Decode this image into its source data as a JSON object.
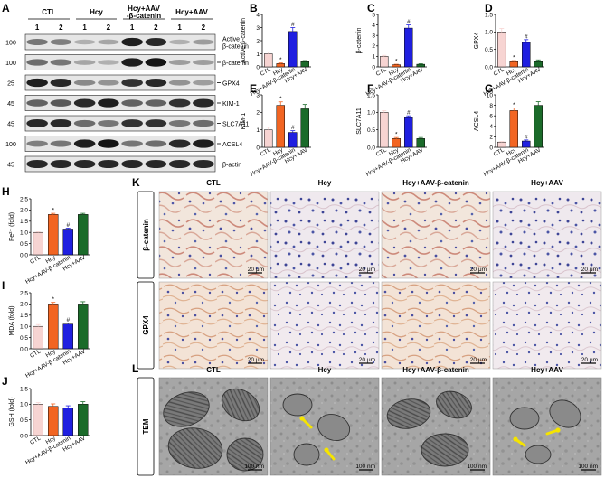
{
  "panel_letters": {
    "A": "A",
    "B": "B",
    "C": "C",
    "D": "D",
    "E": "E",
    "F": "F",
    "G": "G",
    "H": "H",
    "I": "I",
    "J": "J",
    "K": "K",
    "L": "L"
  },
  "colors": {
    "ctl": "#f7d4d2",
    "hcy": "#f26522",
    "hcy_aav_bcat": "#1f1fe0",
    "hcy_aav": "#1b6b2a",
    "ihc_bg": "#efe3d8",
    "tem_bg": "#9a9a9a",
    "arrow": "#f5e400"
  },
  "western": {
    "groups": [
      "CTL",
      "Hcy",
      "Hcy+AAV\n-β-catenin",
      "Hcy+AAV"
    ],
    "group_lines": [
      [
        "CTL"
      ],
      [
        "Hcy"
      ],
      [
        "Hcy+AAV",
        "-β-catenin"
      ],
      [
        "Hcy+AAV"
      ]
    ],
    "lanes": [
      "1",
      "2",
      "1",
      "2",
      "1",
      "2",
      "1",
      "2"
    ],
    "rows": [
      {
        "mw": "100",
        "label": [
          "Active",
          "β-catenin"
        ]
      },
      {
        "mw": "100",
        "label": [
          "β-catenin"
        ]
      },
      {
        "mw": "25",
        "label": [
          "GPX4"
        ]
      },
      {
        "mw": "45",
        "label": [
          "KIM-1"
        ]
      },
      {
        "mw": "45",
        "label": [
          "SLC7A11"
        ]
      },
      {
        "mw": "100",
        "label": [
          "ACSL4"
        ]
      },
      {
        "mw": "45",
        "label": [
          "β-actin"
        ]
      }
    ]
  },
  "categories": [
    "CTL",
    "Hcy",
    "Hcy+AAV-β-catenin",
    "Hcy+AAV"
  ],
  "chart_data": [
    {
      "panel": "B",
      "type": "bar",
      "ylabel": "Active β-catenin",
      "ylim": [
        0,
        4
      ],
      "yticks": [
        "0",
        "1",
        "2",
        "3",
        "4"
      ],
      "values": [
        1.0,
        0.25,
        2.7,
        0.4
      ],
      "errors": [
        0.15,
        0.05,
        0.3,
        0.08
      ],
      "marks": [
        "",
        "*",
        "#",
        ""
      ]
    },
    {
      "panel": "C",
      "type": "bar",
      "ylabel": "β-catenin",
      "ylim": [
        0,
        5
      ],
      "yticks": [
        "0",
        "1",
        "2",
        "3",
        "4",
        "5"
      ],
      "values": [
        1.0,
        0.2,
        3.7,
        0.25
      ],
      "errors": [
        0.1,
        0.05,
        0.3,
        0.05
      ],
      "marks": [
        "",
        "*",
        "#",
        ""
      ]
    },
    {
      "panel": "D",
      "type": "bar",
      "ylabel": "GPX4",
      "ylim": [
        0,
        1.5
      ],
      "yticks": [
        "0.0",
        "0.5",
        "1.0",
        "1.5"
      ],
      "values": [
        1.0,
        0.15,
        0.7,
        0.15
      ],
      "errors": [
        0.1,
        0.03,
        0.08,
        0.05
      ],
      "marks": [
        "",
        "*",
        "#",
        ""
      ]
    },
    {
      "panel": "E",
      "type": "bar",
      "ylabel": "KIM-1",
      "ylim": [
        0,
        3
      ],
      "yticks": [
        "0",
        "1",
        "2",
        "3"
      ],
      "values": [
        1.0,
        2.4,
        0.85,
        2.2
      ],
      "errors": [
        0.15,
        0.2,
        0.1,
        0.25
      ],
      "marks": [
        "",
        "*",
        "#",
        ""
      ]
    },
    {
      "panel": "F",
      "type": "bar",
      "ylabel": "SLC7A11",
      "ylim": [
        0,
        1.5
      ],
      "yticks": [
        "0.0",
        "0.5",
        "1.0",
        "1.5"
      ],
      "values": [
        1.0,
        0.25,
        0.85,
        0.25
      ],
      "errors": [
        0.05,
        0.03,
        0.05,
        0.03
      ],
      "marks": [
        "",
        "*",
        "#",
        ""
      ]
    },
    {
      "panel": "G",
      "type": "bar",
      "ylabel": "ACSL4",
      "ylim": [
        0,
        10
      ],
      "yticks": [
        "0",
        "2",
        "4",
        "6",
        "8",
        "10"
      ],
      "values": [
        1.0,
        7.0,
        1.2,
        8.0
      ],
      "errors": [
        0.1,
        0.5,
        0.2,
        0.7
      ],
      "marks": [
        "",
        "*",
        "#",
        ""
      ]
    },
    {
      "panel": "H",
      "type": "bar",
      "ylabel": "Fe²⁺ (fold)",
      "ylim": [
        0,
        2.5
      ],
      "yticks": [
        "0.0",
        "0.5",
        "1.0",
        "1.5",
        "2.0",
        "2.5"
      ],
      "values": [
        1.0,
        1.8,
        1.15,
        1.8
      ],
      "errors": [
        0.03,
        0.05,
        0.04,
        0.05
      ],
      "marks": [
        "",
        "*",
        "#",
        ""
      ]
    },
    {
      "panel": "I",
      "type": "bar",
      "ylabel": "MDA (fold)",
      "ylim": [
        0,
        2.5
      ],
      "yticks": [
        "0.0",
        "0.5",
        "1.0",
        "1.5",
        "2.0",
        "2.5"
      ],
      "values": [
        1.0,
        2.0,
        1.1,
        2.0
      ],
      "errors": [
        0.08,
        0.07,
        0.05,
        0.1
      ],
      "marks": [
        "",
        "*",
        "#",
        ""
      ]
    },
    {
      "panel": "J",
      "type": "bar",
      "ylabel": "GSH (fold)",
      "ylim": [
        0,
        1.5
      ],
      "yticks": [
        "0.0",
        "0.5",
        "1.0",
        "1.5"
      ],
      "values": [
        1.0,
        0.93,
        0.88,
        1.0
      ],
      "errors": [
        0.05,
        0.08,
        0.07,
        0.08
      ],
      "marks": [
        "",
        "",
        "",
        ""
      ]
    }
  ],
  "ihc": {
    "columns": [
      "CTL",
      "Hcy",
      "Hcy+AAV-β-catenin",
      "Hcy+AAV"
    ],
    "rows": [
      "β-catenin",
      "GPX4"
    ],
    "scale": "20 μm"
  },
  "tem": {
    "columns": [
      "CTL",
      "Hcy",
      "Hcy+AAV-β-catenin",
      "Hcy+AAV"
    ],
    "row": "TEM",
    "scale": "100 nm"
  }
}
